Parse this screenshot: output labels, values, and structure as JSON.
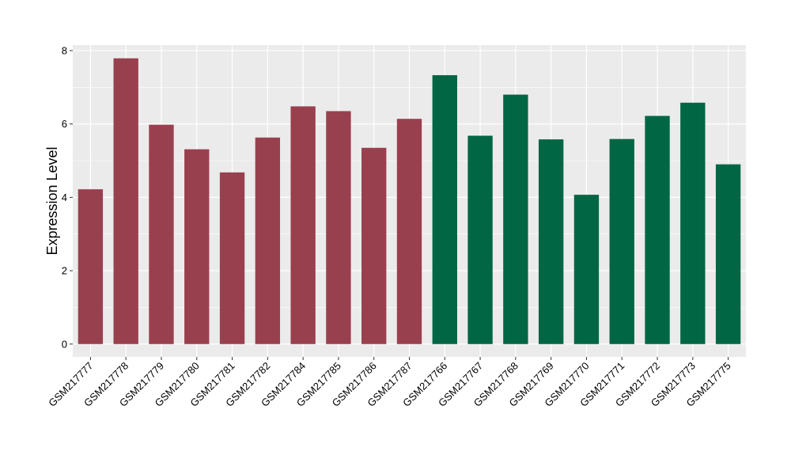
{
  "chart_data": {
    "type": "bar",
    "title": "",
    "xlabel": "",
    "ylabel": "Expression Level",
    "ylim": [
      -0.35,
      8.15
    ],
    "yticks": [
      0,
      2,
      4,
      6,
      8
    ],
    "grid": true,
    "legend": "none",
    "background": "#ebebeb",
    "gridline_color": "#ffffff",
    "categories": [
      "GSM217777",
      "GSM217778",
      "GSM217779",
      "GSM217780",
      "GSM217781",
      "GSM217782",
      "GSM217784",
      "GSM217785",
      "GSM217786",
      "GSM217787",
      "GSM217766",
      "GSM217767",
      "GSM217768",
      "GSM217769",
      "GSM217770",
      "GSM217771",
      "GSM217772",
      "GSM217773",
      "GSM217775"
    ],
    "values": [
      4.22,
      7.79,
      5.98,
      5.31,
      4.68,
      5.63,
      6.48,
      6.35,
      5.35,
      6.14,
      7.33,
      5.68,
      6.8,
      5.58,
      4.07,
      5.59,
      6.22,
      6.58,
      4.9
    ],
    "groups": [
      0,
      0,
      0,
      0,
      0,
      0,
      0,
      0,
      0,
      0,
      1,
      1,
      1,
      1,
      1,
      1,
      1,
      1,
      1
    ],
    "group_colors": [
      "#99404f",
      "#006644"
    ]
  }
}
